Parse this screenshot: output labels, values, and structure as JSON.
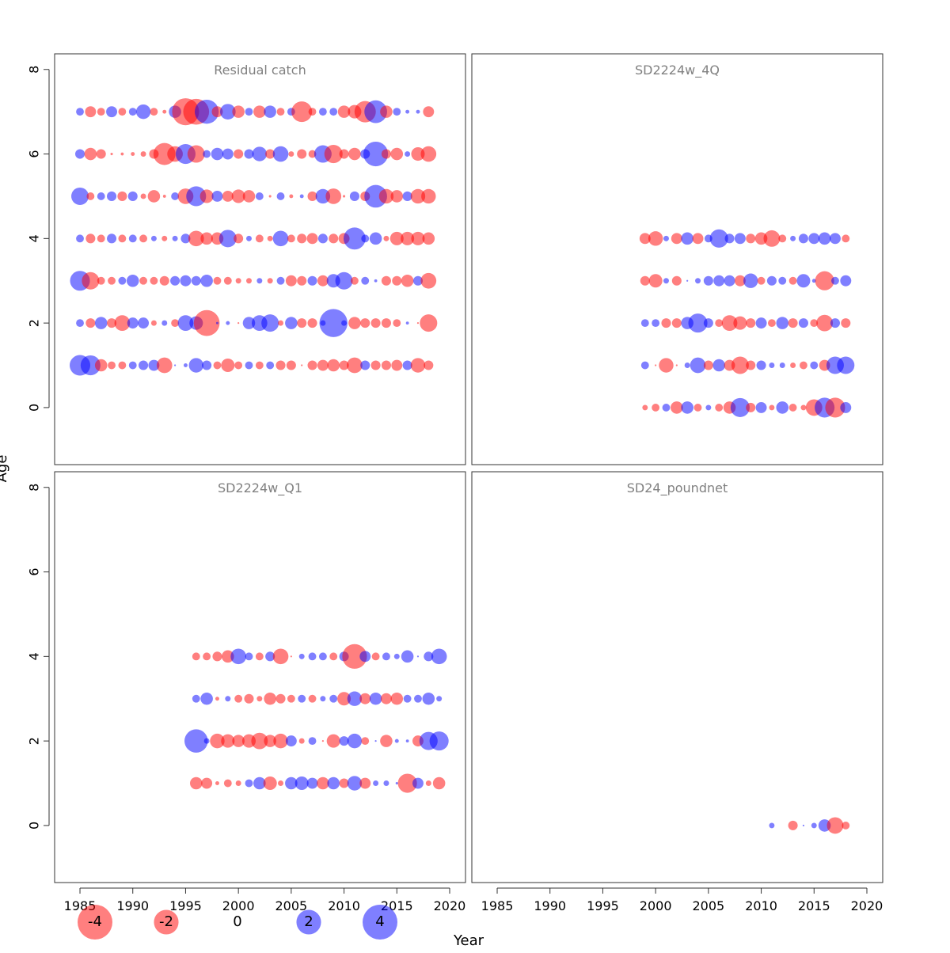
{
  "figure": {
    "xlabel": "Year",
    "ylabel": "Age",
    "xlim": [
      1982.6,
      2021.5
    ],
    "ylim": [
      -1.35,
      8.37
    ],
    "xticks": [
      1985,
      1990,
      1995,
      2000,
      2005,
      2010,
      2015,
      2020
    ],
    "yticks": [
      0,
      2,
      4,
      6,
      8
    ],
    "colors": {
      "negative": "#ff0000",
      "positive": "#0000ff"
    },
    "legend": {
      "values": [
        -4,
        -2,
        0,
        2,
        4
      ]
    }
  },
  "chart_data": [
    {
      "type": "bubble",
      "title": "Residual catch",
      "x": [
        1985,
        1986,
        1987,
        1988,
        1989,
        1990,
        1991,
        1992,
        1993,
        1994,
        1995,
        1996,
        1997,
        1998,
        1999,
        2000,
        2001,
        2002,
        2003,
        2004,
        2005,
        2006,
        2007,
        2008,
        2009,
        2010,
        2011,
        2012,
        2013,
        2014,
        2015,
        2016,
        2017,
        2018
      ],
      "rows": [
        {
          "age": 7,
          "values": [
            0.2,
            -0.4,
            -0.2,
            0.4,
            -0.2,
            0.2,
            0.7,
            -0.2,
            -0.05,
            0.5,
            -2.4,
            -2.2,
            1.9,
            -0.4,
            0.8,
            -0.5,
            0.2,
            -0.5,
            0.5,
            -0.2,
            0.2,
            -1.4,
            -0.2,
            0.2,
            0.2,
            -0.5,
            -0.6,
            -1.5,
            1.7,
            -0.5,
            0.2,
            0.05,
            0.05,
            -0.4
          ]
        },
        {
          "age": 6,
          "values": [
            0.3,
            -0.5,
            -0.3,
            -0.02,
            -0.03,
            -0.05,
            -0.1,
            -0.3,
            -1.6,
            -0.8,
            1.3,
            -1.0,
            0.2,
            0.5,
            0.4,
            -0.3,
            0.3,
            0.7,
            -0.3,
            0.8,
            -0.1,
            -0.3,
            -0.2,
            1.0,
            -1.1,
            -0.3,
            -0.5,
            0.3,
            2.0,
            -0.3,
            -0.5,
            0.1,
            -0.6,
            -0.8
          ]
        },
        {
          "age": 5,
          "values": [
            1.0,
            -0.2,
            0.2,
            0.3,
            -0.3,
            0.3,
            -0.1,
            -0.5,
            -0.03,
            0.2,
            -0.8,
            1.3,
            -0.6,
            0.4,
            -0.4,
            -0.6,
            -0.5,
            0.2,
            -0.02,
            0.2,
            -0.05,
            0.05,
            -0.3,
            0.7,
            -0.8,
            -0.02,
            0.3,
            -0.3,
            1.7,
            -0.7,
            -0.5,
            0.3,
            -0.7,
            -0.7
          ]
        },
        {
          "age": 4,
          "values": [
            0.2,
            -0.3,
            -0.2,
            0.3,
            -0.2,
            0.2,
            -0.2,
            0.1,
            -0.1,
            0.1,
            0.3,
            -0.8,
            -0.5,
            -0.5,
            1.0,
            -0.3,
            0.1,
            -0.2,
            -0.1,
            0.8,
            -0.2,
            -0.3,
            -0.4,
            0.3,
            -0.3,
            -0.4,
            1.6,
            0.2,
            0.5,
            -0.1,
            -0.6,
            -0.6,
            -0.6,
            -0.5
          ]
        },
        {
          "age": 3,
          "values": [
            1.3,
            -1.0,
            -0.2,
            -0.2,
            0.2,
            0.5,
            -0.2,
            -0.2,
            -0.3,
            0.3,
            0.4,
            0.3,
            0.5,
            -0.2,
            -0.2,
            -0.1,
            -0.1,
            0.1,
            -0.1,
            0.2,
            -0.4,
            -0.3,
            0.3,
            -0.4,
            0.6,
            1.0,
            -0.2,
            0.2,
            0.03,
            -0.3,
            -0.3,
            -0.5,
            0.3,
            -0.8
          ]
        },
        {
          "age": 2,
          "values": [
            0.2,
            -0.3,
            0.5,
            -0.3,
            -0.8,
            0.4,
            0.4,
            -0.1,
            0.1,
            -0.2,
            0.8,
            0.6,
            -2.2,
            0.02,
            0.05,
            -0.01,
            0.5,
            0.8,
            1.0,
            -0.1,
            0.5,
            -0.3,
            -0.3,
            0.1,
            2.6,
            0.1,
            -0.5,
            -0.3,
            -0.3,
            -0.3,
            -0.2,
            0.03,
            -0.01,
            -1.0
          ]
        },
        {
          "age": 1,
          "values": [
            1.4,
            1.3,
            -0.5,
            -0.2,
            -0.2,
            0.2,
            0.3,
            0.4,
            -0.8,
            0.01,
            0.05,
            0.7,
            0.3,
            -0.2,
            -0.6,
            -0.2,
            0.2,
            -0.2,
            0.2,
            -0.3,
            -0.3,
            -0.01,
            -0.3,
            -0.4,
            -0.5,
            -0.3,
            -0.8,
            0.3,
            -0.3,
            -0.3,
            -0.4,
            0.3,
            -0.7,
            -0.3
          ]
        }
      ]
    },
    {
      "type": "bubble",
      "title": "SD2224w_4Q",
      "x": [
        1999,
        2000,
        2001,
        2002,
        2003,
        2004,
        2005,
        2006,
        2007,
        2008,
        2009,
        2010,
        2011,
        2012,
        2013,
        2014,
        2015,
        2016,
        2017,
        2018
      ],
      "rows": [
        {
          "age": 4,
          "values": [
            -0.4,
            -0.7,
            0.1,
            -0.4,
            0.5,
            -0.4,
            0.2,
            1.1,
            0.3,
            0.4,
            -0.3,
            -0.5,
            -0.9,
            -0.2,
            0.1,
            0.3,
            0.4,
            0.5,
            0.4,
            -0.2
          ]
        },
        {
          "age": 3,
          "values": [
            -0.3,
            -0.6,
            0.1,
            -0.3,
            0.01,
            0.1,
            0.3,
            0.4,
            0.4,
            -0.4,
            0.7,
            -0.2,
            0.3,
            0.2,
            -0.2,
            0.6,
            0.05,
            -1.2,
            0.2,
            0.4
          ]
        },
        {
          "age": 2,
          "values": [
            0.2,
            0.2,
            -0.3,
            -0.3,
            0.5,
            1.2,
            0.3,
            -0.2,
            -0.8,
            -0.6,
            -0.3,
            0.4,
            -0.2,
            0.5,
            -0.3,
            0.3,
            -0.2,
            -0.9,
            0.3,
            -0.3
          ]
        },
        {
          "age": 1,
          "values": [
            0.2,
            -0.01,
            -0.7,
            -0.01,
            0.1,
            0.8,
            -0.3,
            0.5,
            -0.4,
            -1.0,
            -0.3,
            0.3,
            0.1,
            0.1,
            -0.1,
            -0.2,
            0.2,
            -0.4,
            1.0,
            1.0
          ]
        },
        {
          "age": 0,
          "values": [
            -0.1,
            -0.2,
            0.2,
            -0.5,
            0.5,
            -0.2,
            0.1,
            -0.2,
            -0.5,
            1.2,
            -0.3,
            0.4,
            -0.1,
            0.5,
            -0.2,
            -0.1,
            -0.9,
            1.3,
            -1.3,
            0.4
          ]
        }
      ]
    },
    {
      "type": "bubble",
      "title": "SD2224w_Q1",
      "x": [
        1996,
        1997,
        1998,
        1999,
        2000,
        2001,
        2002,
        2003,
        2004,
        2005,
        2006,
        2007,
        2008,
        2009,
        2010,
        2011,
        2012,
        2013,
        2014,
        2015,
        2016,
        2017,
        2018,
        2019
      ],
      "rows": [
        {
          "age": 4,
          "values": [
            -0.2,
            -0.2,
            -0.3,
            -0.5,
            0.8,
            0.2,
            -0.2,
            0.3,
            -0.8,
            -0.01,
            0.1,
            0.2,
            0.2,
            -0.2,
            0.3,
            -2.0,
            0.4,
            -0.2,
            0.2,
            0.1,
            0.5,
            0.01,
            0.3,
            0.8
          ]
        },
        {
          "age": 3,
          "values": [
            0.2,
            0.5,
            -0.05,
            0.1,
            -0.2,
            -0.3,
            -0.1,
            -0.5,
            -0.3,
            -0.2,
            0.2,
            -0.2,
            0.1,
            0.2,
            -0.6,
            0.7,
            -0.4,
            0.5,
            -0.4,
            -0.5,
            0.2,
            0.2,
            0.5,
            0.1
          ]
        },
        {
          "age": 2,
          "values": [
            1.8,
            0.1,
            -0.7,
            -0.6,
            -0.5,
            -0.6,
            -0.9,
            -0.5,
            -0.7,
            0.4,
            -0.1,
            0.2,
            -0.01,
            -0.6,
            0.3,
            0.7,
            -0.2,
            0.01,
            -0.5,
            0.05,
            0.03,
            -0.4,
            1.1,
            1.2
          ]
        },
        {
          "age": 1,
          "values": [
            -0.5,
            -0.4,
            -0.05,
            -0.2,
            -0.1,
            0.2,
            0.5,
            -0.6,
            -0.1,
            0.5,
            0.6,
            0.4,
            -0.5,
            0.5,
            -0.3,
            0.7,
            -0.4,
            0.1,
            0.1,
            0.02,
            -1.2,
            0.4,
            -0.1,
            -0.5
          ]
        }
      ]
    },
    {
      "type": "bubble",
      "title": "SD24_poundnet",
      "x": [
        2011,
        2012,
        2013,
        2014,
        2015,
        2016,
        2017,
        2018
      ],
      "rows": [
        {
          "age": 0,
          "values": [
            0.1,
            null,
            -0.3,
            0.01,
            0.1,
            0.5,
            -0.9,
            -0.2
          ]
        }
      ]
    }
  ]
}
